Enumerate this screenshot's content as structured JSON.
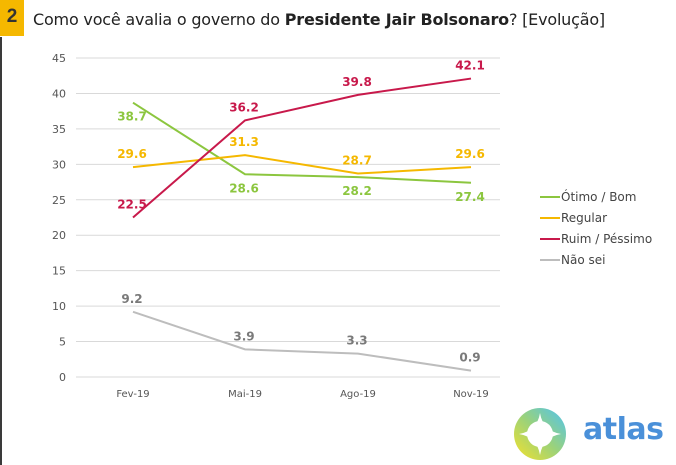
{
  "header": {
    "number": "2",
    "title_pre": "Como você avalia o governo do ",
    "title_bold": "Presidente Jair Bolsonaro",
    "title_post": "? [Evolução]"
  },
  "brand": {
    "name": "atlas"
  },
  "chart_data": {
    "type": "line",
    "title": "Como você avalia o governo do Presidente Jair Bolsonaro? [Evolução]",
    "xlabel": "",
    "ylabel": "",
    "categories": [
      "Fev-19",
      "Mai-19",
      "Ago-19",
      "Nov-19"
    ],
    "ylim": [
      0,
      45
    ],
    "yticks": [
      0,
      5,
      10,
      15,
      20,
      25,
      30,
      35,
      40,
      45
    ],
    "grid": true,
    "legend_position": "right",
    "series": [
      {
        "name": "Ótimo / Bom",
        "color": "#8cc63f",
        "values": [
          38.7,
          28.6,
          28.2,
          27.4
        ],
        "label_pos": [
          "below",
          "below",
          "below",
          "below"
        ]
      },
      {
        "name": "Regular",
        "color": "#f5b800",
        "values": [
          29.6,
          31.3,
          28.7,
          29.6
        ],
        "label_pos": [
          "above",
          "above",
          "above",
          "above"
        ]
      },
      {
        "name": "Ruim / Péssimo",
        "color": "#c8194b",
        "values": [
          22.5,
          36.2,
          39.8,
          42.1
        ],
        "label_pos": [
          "above",
          "above",
          "above",
          "above"
        ]
      },
      {
        "name": "Não sei",
        "color": "#bdbdbd",
        "label_color": "#7a7a7a",
        "values": [
          9.2,
          3.9,
          3.3,
          0.9
        ],
        "label_pos": [
          "above",
          "above",
          "above",
          "above"
        ]
      }
    ]
  }
}
